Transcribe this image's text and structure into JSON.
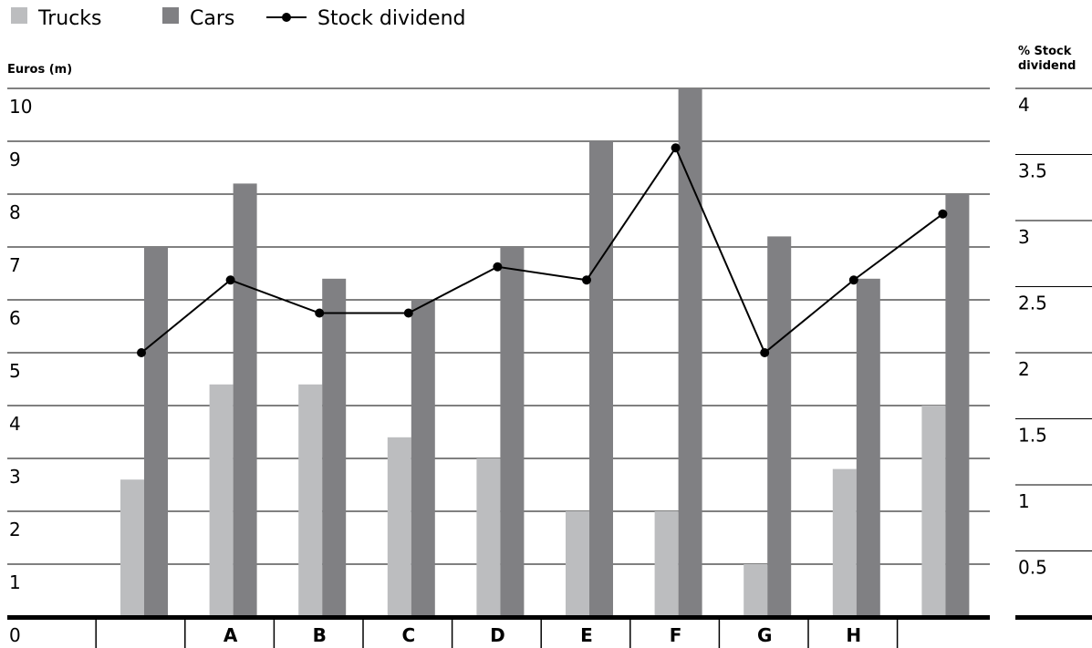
{
  "chart_data": {
    "type": "bar",
    "categories": [
      "",
      "A",
      "B",
      "C",
      "D",
      "E",
      "F",
      "G",
      "H",
      ""
    ],
    "series": [
      {
        "name": "Trucks",
        "kind": "bar",
        "axis": "left",
        "color": "#bcbdbf",
        "values": [
          2.6,
          4.4,
          4.4,
          3.4,
          3.0,
          2.0,
          2.0,
          1.0,
          2.8,
          4.0
        ]
      },
      {
        "name": "Cars",
        "kind": "bar",
        "axis": "left",
        "color": "#808083",
        "values": [
          7.0,
          8.2,
          6.4,
          6.0,
          7.0,
          9.0,
          10.0,
          7.2,
          6.4,
          8.0
        ]
      },
      {
        "name": "Stock dividend",
        "kind": "line",
        "axis": "right",
        "color": "#000000",
        "values": [
          2.0,
          2.55,
          2.3,
          2.3,
          2.65,
          2.55,
          3.55,
          2.0,
          2.55,
          3.05
        ]
      }
    ],
    "legend": [
      "Trucks",
      "Cars",
      "Stock dividend"
    ],
    "legend_position": "top-left",
    "ylabel_left": "Euros (m)",
    "ylabel_right": "% Stock dividend",
    "ylabel_right_lines": [
      "% Stock",
      "dividend"
    ],
    "ylim_left": [
      0,
      10
    ],
    "ylim_right": [
      0,
      4
    ],
    "yticks_left": [
      "1",
      "2",
      "3",
      "4",
      "5",
      "6",
      "7",
      "8",
      "9",
      "10"
    ],
    "yticks_right": [
      "0.5",
      "1",
      "1.5",
      "2",
      "2.5",
      "3",
      "3.5",
      "4"
    ],
    "origin_label": "0",
    "grid": true
  }
}
